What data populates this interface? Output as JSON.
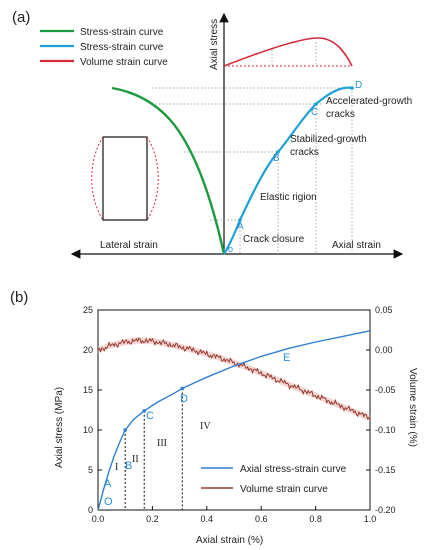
{
  "colors": {
    "stress_green": "#1c9a3e",
    "stress_blue": "#1ea0d8",
    "volume_red": "#d22a3a",
    "panel_b_blue": "#2f7fd0",
    "panel_b_brown": "#9a3a2a",
    "point_label": "#2a8fd6"
  },
  "panel_a": {
    "panel_label": "(a)",
    "legend": [
      {
        "label": "Stress-strain curve",
        "color": "#1c9a3e"
      },
      {
        "label": "Stress-strain curve",
        "color": "#1ea0d8"
      },
      {
        "label": "Volume strain curve",
        "color": "#d22a3a"
      }
    ],
    "axis_y_label": "Axial stress",
    "axis_x_left_label": "Lateral strain",
    "axis_x_right_label": "Axial strain",
    "origin_label": "o",
    "points": [
      "A",
      "B",
      "C",
      "D"
    ],
    "annotations": {
      "crack_closure": "Crack closure",
      "elastic": "Elastic rigion",
      "stabilized_1": "Stabilized-growth",
      "stabilized_2": "cracks",
      "accelerated_1": "Accelerated-growth",
      "accelerated_2": "cracks"
    }
  },
  "panel_b": {
    "panel_label": "(b)",
    "legend": [
      {
        "label": "Axial stress-strain curve",
        "color": "#2f7fd0"
      },
      {
        "label": "Volume strain curve",
        "color": "#9a3a2a"
      }
    ],
    "roman_labels": [
      "I",
      "II",
      "III",
      "IV"
    ],
    "point_labels": [
      "O",
      "A",
      "B",
      "C",
      "D",
      "E"
    ]
  },
  "chart_data": [
    {
      "type": "line",
      "xlabel": "",
      "ylabel": "Axial stress",
      "series": [
        {
          "name": "Stress-strain curve",
          "side": "lateral",
          "values": "schematic"
        },
        {
          "name": "Stress-strain curve",
          "side": "axial",
          "values": "schematic"
        },
        {
          "name": "Volume strain curve",
          "values": "schematic"
        }
      ]
    },
    {
      "type": "line",
      "xlabel": "Axial strain (%)",
      "ylabel": "Axial stress (MPa)",
      "y2label": "Volume strain (%)",
      "xlim": [
        0,
        1.0
      ],
      "ylim": [
        0,
        25
      ],
      "y2lim": [
        -0.2,
        0.05
      ],
      "x_ticks": [
        "0.0",
        "0.2",
        "0.4",
        "0.6",
        "0.8",
        "1.0"
      ],
      "y_ticks": [
        "0",
        "5",
        "10",
        "15",
        "20",
        "25"
      ],
      "y2_ticks": [
        "0.05",
        "0.00",
        "-0.05",
        "-0.10",
        "-0.15",
        "-0.20"
      ],
      "series": [
        {
          "name": "Axial stress-strain curve",
          "x": [
            0,
            0.01,
            0.02,
            0.04,
            0.06,
            0.08,
            0.1,
            0.13,
            0.17,
            0.22,
            0.28,
            0.31,
            0.4,
            0.5,
            0.6,
            0.7,
            0.8,
            0.9,
            1.0
          ],
          "y": [
            0,
            1.2,
            2.5,
            4.8,
            6.8,
            8.5,
            10.0,
            11.3,
            12.4,
            13.5,
            14.6,
            15.2,
            16.6,
            18.0,
            19.2,
            20.2,
            21.0,
            21.7,
            22.4
          ]
        },
        {
          "name": "Volume strain curve",
          "axis": "right",
          "x": [
            0,
            0.05,
            0.1,
            0.15,
            0.2,
            0.25,
            0.3,
            0.35,
            0.4,
            0.45,
            0.5,
            0.55,
            0.6,
            0.65,
            0.7,
            0.75,
            0.8,
            0.85,
            0.9,
            0.95,
            1.0
          ],
          "y": [
            0.0,
            0.006,
            0.01,
            0.012,
            0.011,
            0.008,
            0.004,
            0.0,
            -0.005,
            -0.01,
            -0.016,
            -0.022,
            -0.029,
            -0.036,
            -0.043,
            -0.05,
            -0.057,
            -0.064,
            -0.071,
            -0.078,
            -0.085
          ]
        }
      ],
      "stage_markers": [
        {
          "point": "B",
          "x": 0.1,
          "y": 10.0
        },
        {
          "point": "C",
          "x": 0.17,
          "y": 12.4
        },
        {
          "point": "D",
          "x": 0.31,
          "y": 15.2
        }
      ],
      "point_positions": [
        {
          "label": "O",
          "x": 0.01,
          "y": 1.0
        },
        {
          "label": "A",
          "x": 0.01,
          "y": 5.2
        },
        {
          "label": "E",
          "x": 0.69,
          "y": 18.0
        }
      ]
    }
  ]
}
